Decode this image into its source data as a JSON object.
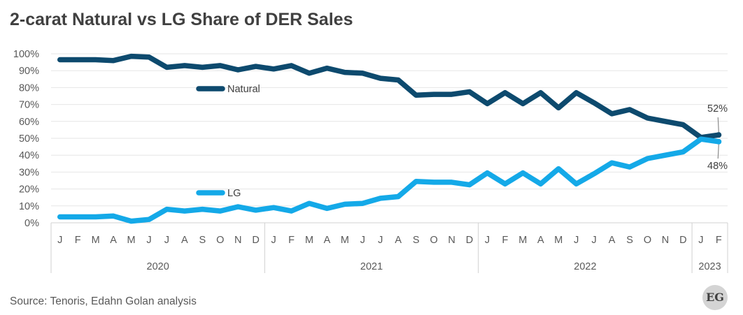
{
  "title": "2-carat Natural vs LG Share of DER Sales",
  "source": "Source: Tenoris, Edahn Golan analysis",
  "logo_text": "EG",
  "chart_data": {
    "type": "line",
    "title": "2-carat Natural vs LG Share of DER Sales",
    "xlabel": "",
    "ylabel": "",
    "ylim": [
      0,
      100
    ],
    "y_ticks": [
      "0%",
      "10%",
      "20%",
      "30%",
      "40%",
      "50%",
      "60%",
      "70%",
      "80%",
      "90%",
      "100%"
    ],
    "grid": true,
    "categories": [
      "J",
      "F",
      "M",
      "A",
      "M",
      "J",
      "J",
      "A",
      "S",
      "O",
      "N",
      "D",
      "J",
      "F",
      "M",
      "A",
      "M",
      "J",
      "J",
      "A",
      "S",
      "O",
      "N",
      "D",
      "J",
      "F",
      "M",
      "A",
      "M",
      "J",
      "J",
      "A",
      "S",
      "O",
      "N",
      "D",
      "J",
      "F"
    ],
    "years": [
      {
        "label": "2020",
        "months": 12
      },
      {
        "label": "2021",
        "months": 12
      },
      {
        "label": "2022",
        "months": 12
      },
      {
        "label": "2023",
        "months": 2
      }
    ],
    "series": [
      {
        "name": "Natural",
        "color": "#0d4a6e",
        "values": [
          96.5,
          96.5,
          96.5,
          96,
          98.5,
          98,
          92,
          93,
          92,
          93,
          90.5,
          92.5,
          91,
          93,
          88.5,
          91.5,
          89,
          88.5,
          85.5,
          84.5,
          75.5,
          76,
          76,
          77.5,
          70.5,
          77,
          70.5,
          77,
          68,
          77,
          71,
          64.5,
          67,
          62,
          60,
          58,
          50.5,
          52
        ]
      },
      {
        "name": "LG",
        "color": "#14a9e8",
        "values": [
          3.5,
          3.5,
          3.5,
          4,
          1,
          2,
          8,
          7,
          8,
          7,
          9.5,
          7.5,
          9,
          7,
          11.5,
          8.5,
          11,
          11.5,
          14.5,
          15.5,
          24.5,
          24,
          24,
          22.5,
          29.5,
          23,
          29.5,
          23,
          32,
          23,
          29,
          35.5,
          33,
          38,
          40,
          42,
          49.5,
          48
        ]
      }
    ],
    "annotations": [
      "52%",
      "48%"
    ]
  }
}
